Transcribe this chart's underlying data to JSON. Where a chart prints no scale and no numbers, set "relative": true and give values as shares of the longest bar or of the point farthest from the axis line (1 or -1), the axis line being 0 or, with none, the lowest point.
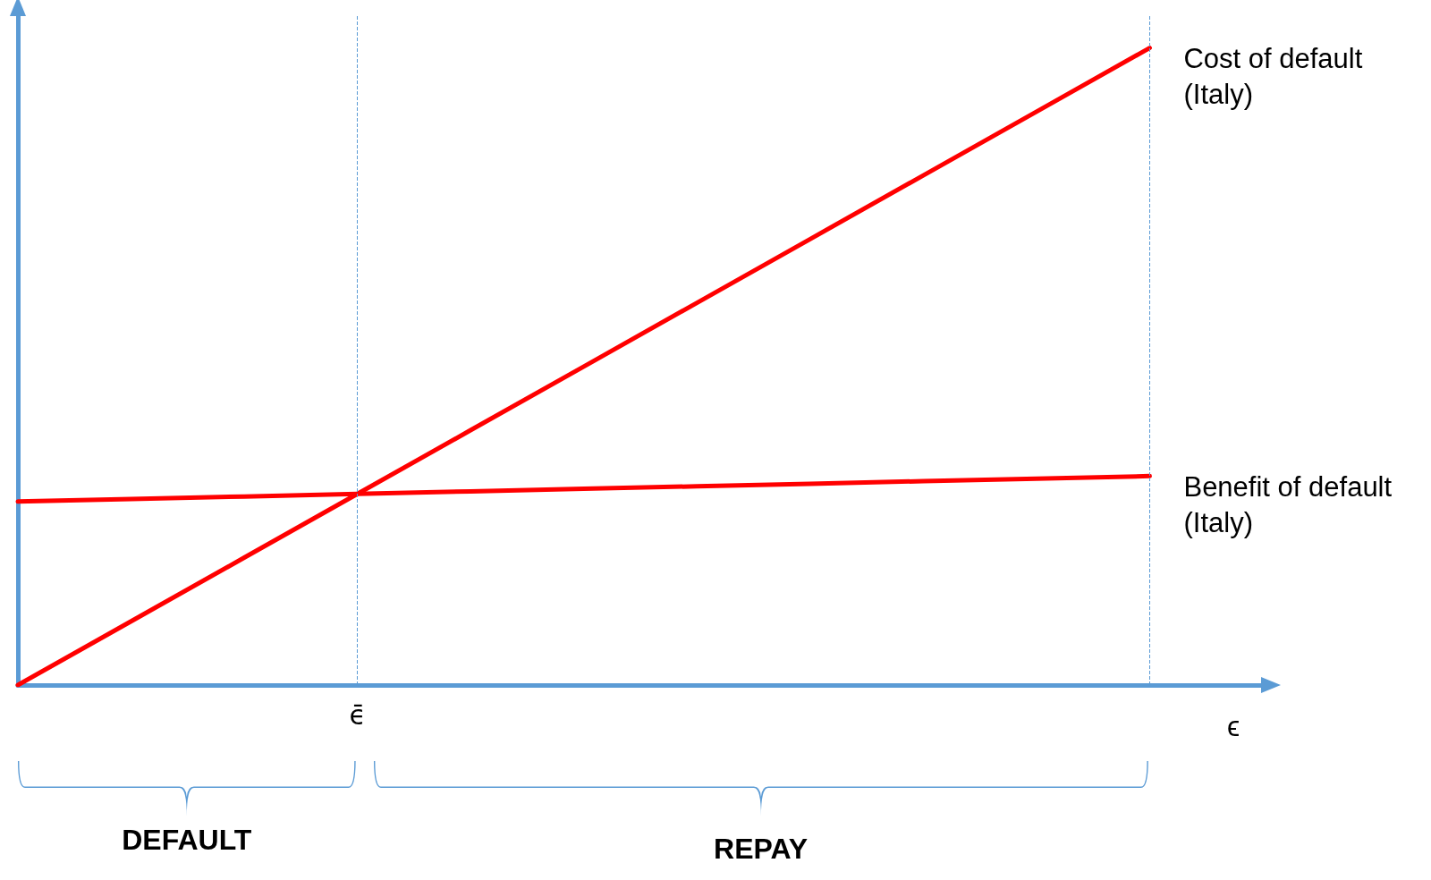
{
  "chart_data": {
    "type": "line",
    "relative": true,
    "xlabel": "ϵ",
    "legend": false,
    "grid": false,
    "marker": "none",
    "line_style": "solid",
    "categories": [
      null,
      null,
      null,
      null,
      null,
      null,
      null,
      null,
      null,
      null,
      null,
      null
    ],
    "series": [
      {
        "name": "Cost of default (Italy)",
        "color": "#ff0000",
        "values": [
          0,
          0.1,
          0.2,
          0.3,
          0.4,
          0.5,
          0.6,
          0.7,
          0.8,
          0.9,
          1,
          null
        ]
      },
      {
        "name": "Benefit of default (Italy)",
        "color": "#ff0000",
        "values": [
          0.288,
          0.292,
          0.296,
          0.3,
          0.304,
          0.308,
          0.312,
          0.316,
          0.32,
          0.324,
          0.328,
          null
        ]
      }
    ],
    "ref_lines": [
      {
        "axis": "x",
        "label": "ϵ̄",
        "color": "#5b9bd5",
        "line_style": "dashed"
      }
    ],
    "annotations": [
      "DEFAULT",
      "REPAY"
    ]
  }
}
